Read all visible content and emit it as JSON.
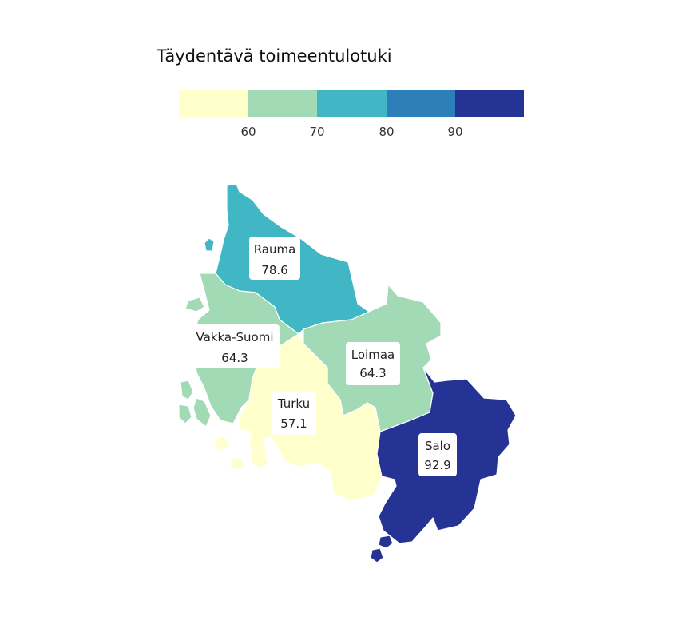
{
  "legend": {
    "title": "Täydentävä toimeentulotuki",
    "colors": [
      "#ffffcc",
      "#a1dab4",
      "#41b6c4",
      "#2c7fb8",
      "#253494"
    ],
    "breaks": [
      "60",
      "70",
      "80",
      "90"
    ]
  },
  "regions": [
    {
      "id": "rauma",
      "name": "Rauma",
      "value": "78.6",
      "color": "#41b6c4"
    },
    {
      "id": "vakka-suomi",
      "name": "Vakka-Suomi",
      "value": "64.3",
      "color": "#a1dab4"
    },
    {
      "id": "loimaa",
      "name": "Loimaa",
      "value": "64.3",
      "color": "#a1dab4"
    },
    {
      "id": "turku",
      "name": "Turku",
      "value": "57.1",
      "color": "#ffffcc"
    },
    {
      "id": "salo",
      "name": "Salo",
      "value": "92.9",
      "color": "#253494"
    }
  ]
}
